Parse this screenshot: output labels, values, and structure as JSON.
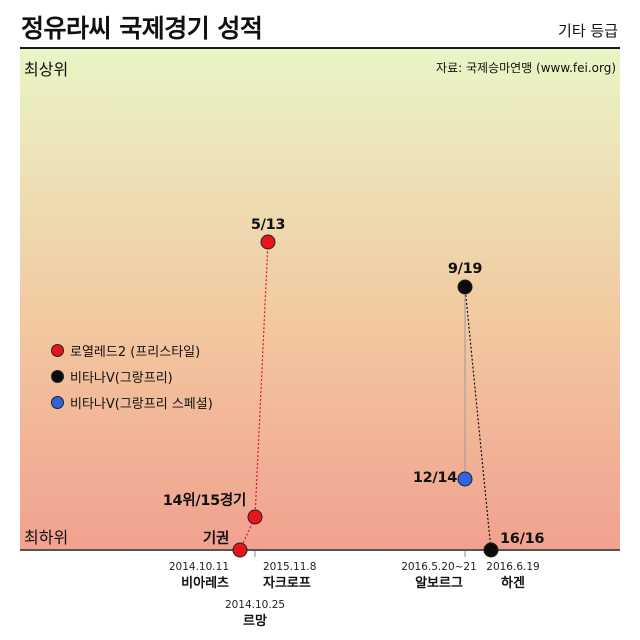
{
  "title": "정유라씨 국제경기 성적",
  "subtitle": "기타 등급",
  "source": "자료: 국제승마연맹 (www.fei.org)",
  "chart_data": {
    "type": "scatter",
    "y_top_label": "최상위",
    "y_bottom_label": "최하위",
    "series": [
      {
        "name": "로열레드2 (프리스타일)",
        "color": "#e8141b",
        "connector": "dotted",
        "connector_color": "#e8141b",
        "points": [
          {
            "label": "기권",
            "date": "2014.10.11",
            "venue": "비아레츠"
          },
          {
            "label": "14위/15경기",
            "date": "2014.10.25",
            "venue": "르망"
          },
          {
            "label": "5/13",
            "date": "2015.11.8",
            "venue": "자크로프"
          }
        ]
      },
      {
        "name": "비타나V(그랑프리)",
        "color": "#0c0c0c",
        "connector": "dotted",
        "connector_color": "#111111",
        "points": [
          {
            "label": "9/19",
            "date": "2016.5.20~21",
            "venue": "알보르그"
          },
          {
            "label": "16/16",
            "date": "2016.6.19",
            "venue": "하겐"
          }
        ]
      },
      {
        "name": "비타나V(그랑프리 스페셜)",
        "color": "#2f63e0",
        "connector": "solid",
        "connector_color": "#999999",
        "points": [
          {
            "label": "12/14",
            "date": "2016.5.20~21",
            "venue": "알보르그"
          }
        ]
      }
    ],
    "x_labels": [
      {
        "date": "2014.10.11",
        "venue": "비아레츠"
      },
      {
        "date": "2014.10.25",
        "venue": "르망"
      },
      {
        "date": "2015.11.8",
        "venue": "자크로프"
      },
      {
        "date": "2016.5.20~21",
        "venue": "알보르그"
      },
      {
        "date": "2016.6.19",
        "venue": "하겐"
      }
    ],
    "legend_position": "left-middle",
    "grid": false
  }
}
